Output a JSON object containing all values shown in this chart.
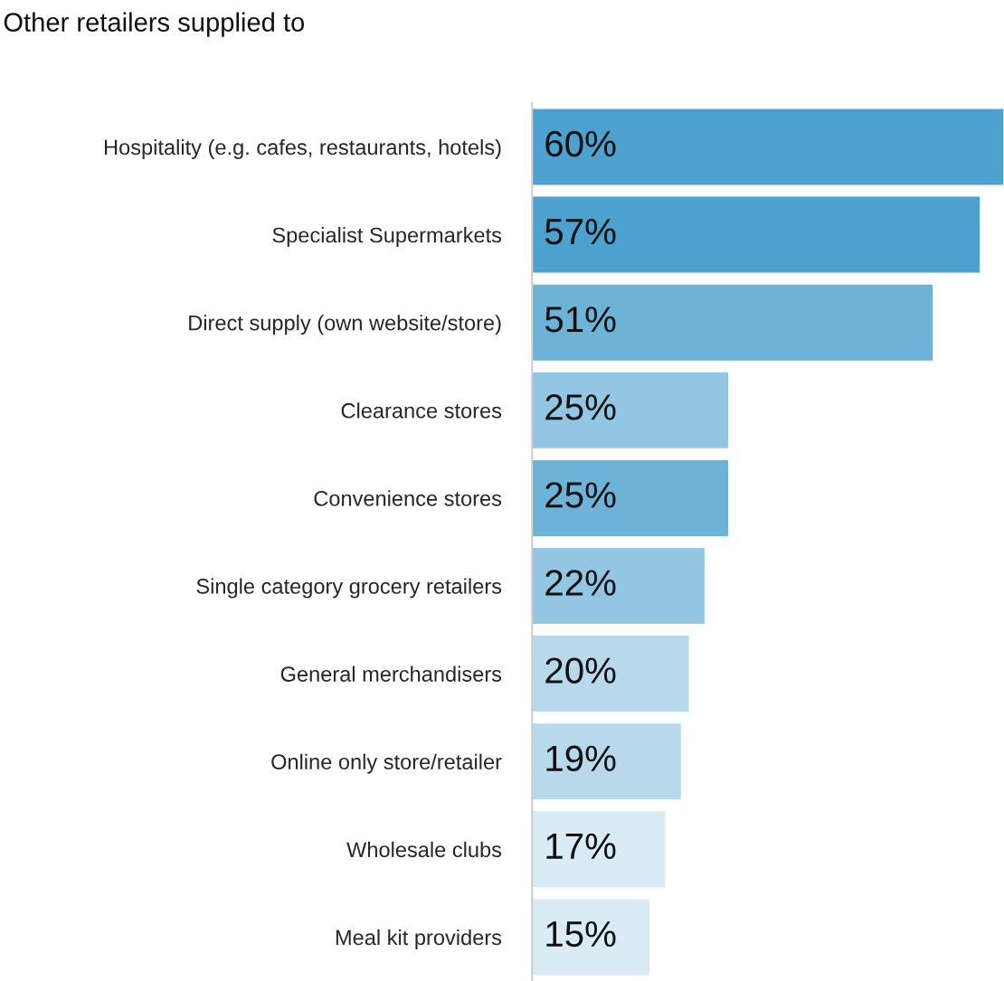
{
  "chart_data": {
    "type": "bar",
    "orientation": "horizontal",
    "title": "Other retailers supplied to",
    "categories": [
      "Hospitality (e.g. cafes, restaurants, hotels)",
      "Specialist Supermarkets",
      "Direct supply (own website/store)",
      "Clearance stores",
      "Convenience stores",
      "Single category grocery retailers",
      "General merchandisers",
      "Online only store/retailer",
      "Wholesale clubs",
      "Meal kit providers"
    ],
    "values": [
      60,
      57,
      51,
      25,
      25,
      22,
      20,
      19,
      17,
      15
    ],
    "colors": [
      "#4ca1cf",
      "#4ca1cf",
      "#6db3d8",
      "#93c6e2",
      "#6db3d8",
      "#93c6e2",
      "#b8d9ec",
      "#b8d9ec",
      "#d9ebf5",
      "#d9ebf5"
    ],
    "value_labels": [
      "60%",
      "57%",
      "51%",
      "25%",
      "25%",
      "22%",
      "20%",
      "19%",
      "17%",
      "15%"
    ],
    "xlim": [
      0,
      60
    ],
    "grid": false,
    "legend": false
  }
}
